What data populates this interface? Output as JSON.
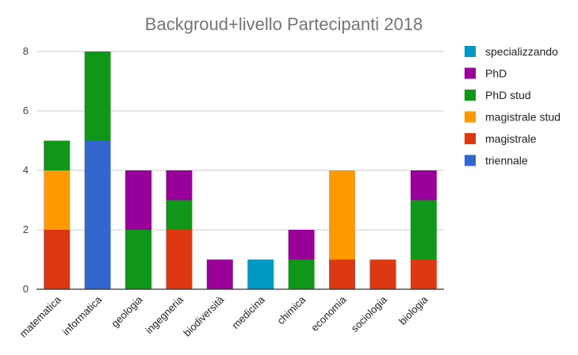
{
  "chart_data": {
    "type": "bar",
    "stacked": true,
    "title": "Backgroud+livello Partecipanti 2018",
    "xlabel": "",
    "ylabel": "",
    "ylim": [
      0,
      8
    ],
    "yticks": [
      0,
      2,
      4,
      6,
      8
    ],
    "grid": true,
    "legend_position": "right",
    "categories": [
      "matematica",
      "informatica",
      "geologia",
      "ingegneria",
      "biodiversità",
      "medicina",
      "chimica",
      "economia",
      "sociologia",
      "biologia"
    ],
    "series": [
      {
        "name": "triennale",
        "color": "#3366cc",
        "values": [
          0,
          5,
          0,
          0,
          0,
          0,
          0,
          0,
          0,
          0
        ]
      },
      {
        "name": "magistrale",
        "color": "#dc3912",
        "values": [
          2,
          0,
          0,
          2,
          0,
          0,
          0,
          1,
          1,
          1
        ]
      },
      {
        "name": "magistrale stud",
        "color": "#ff9900",
        "values": [
          2,
          0,
          0,
          0,
          0,
          0,
          0,
          3,
          0,
          0
        ]
      },
      {
        "name": "PhD stud",
        "color": "#109618",
        "values": [
          1,
          3,
          2,
          1,
          0,
          0,
          1,
          0,
          0,
          2
        ]
      },
      {
        "name": "PhD",
        "color": "#990099",
        "values": [
          0,
          0,
          2,
          1,
          1,
          0,
          1,
          0,
          0,
          1
        ]
      },
      {
        "name": "specializzando",
        "color": "#0099c6",
        "values": [
          0,
          0,
          0,
          0,
          0,
          1,
          0,
          0,
          0,
          0
        ]
      }
    ],
    "legend_order": [
      "specializzando",
      "PhD",
      "PhD stud",
      "magistrale stud",
      "magistrale",
      "triennale"
    ]
  }
}
